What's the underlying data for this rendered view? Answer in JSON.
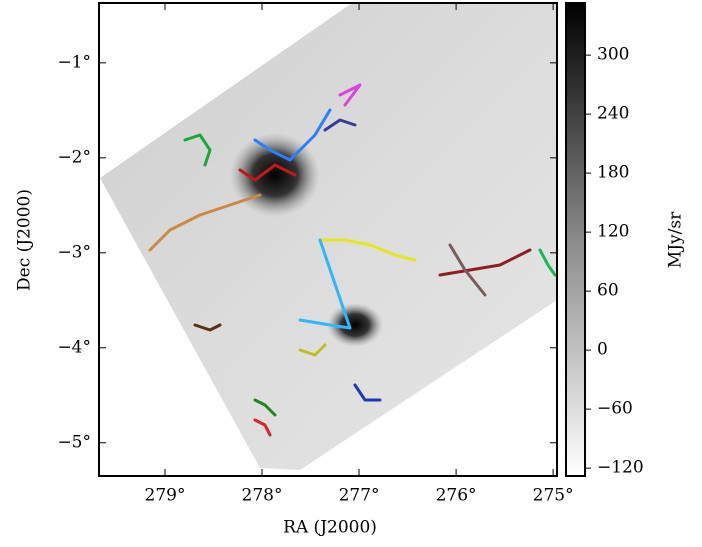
{
  "chart_data": {
    "type": "image",
    "xlabel": "RA (J2000)",
    "ylabel": "Dec (J2000)",
    "colorbar_label": "MJy/sr",
    "xlim": [
      279.68,
      274.96
    ],
    "xticks": [
      {
        "value": 279,
        "label": "279°"
      },
      {
        "value": 278,
        "label": "278°"
      },
      {
        "value": 277,
        "label": "277°"
      },
      {
        "value": 276,
        "label": "276°"
      },
      {
        "value": 275,
        "label": "275°"
      }
    ],
    "ylim": [
      -5.35,
      -0.37
    ],
    "yticks": [
      {
        "value": -1,
        "label": "−1°"
      },
      {
        "value": -2,
        "label": "−2°"
      },
      {
        "value": -3,
        "label": "−3°"
      },
      {
        "value": -4,
        "label": "−4°"
      },
      {
        "value": -5,
        "label": "−5°"
      }
    ],
    "clim": [
      -128,
      353
    ],
    "cticks": [
      {
        "value": -120,
        "label": "−120"
      },
      {
        "value": -60,
        "label": "−60"
      },
      0,
      60,
      120,
      180,
      240,
      300
    ]
  }
}
